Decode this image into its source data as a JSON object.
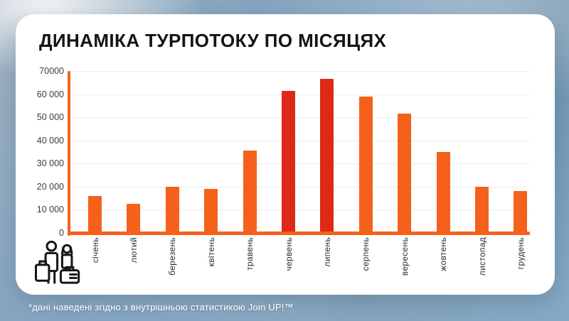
{
  "title": "ДИНАМІКА ТУРПОТОКУ ПО МІСЯЦЯХ",
  "footnote": "*дані наведені згідно з внутрішньою статистикою Join UP!™",
  "colors": {
    "bar": "#F5611B",
    "bar_highlight": "#DC2A17",
    "axis": "#F5611B",
    "gridline": "#EBEBEB",
    "title_text": "#141414",
    "footnote_text": "#FFFFFF",
    "card_background": "#FFFFFF"
  },
  "chart_data": {
    "type": "bar",
    "title": "ДИНАМІКА ТУРПОТОКУ ПО МІСЯЦЯХ",
    "categories": [
      "січень",
      "лютий",
      "березень",
      "квітень",
      "травень",
      "червень",
      "липень",
      "серпень",
      "вересень",
      "жовтень",
      "листопад",
      "грудень"
    ],
    "values": [
      16000,
      12500,
      20000,
      19000,
      35500,
      61500,
      66500,
      59000,
      51500,
      35000,
      20000,
      18000
    ],
    "highlight_indices": [
      5,
      6
    ],
    "xlabel": "",
    "ylabel": "",
    "ylim": [
      0,
      70000
    ],
    "ytick_interval": 10000,
    "ytick_labels": [
      "0",
      "10 000",
      "20 000",
      "30 000",
      "40 000",
      "50 000",
      "60 000",
      "70000"
    ],
    "grid": true,
    "legend": false
  }
}
